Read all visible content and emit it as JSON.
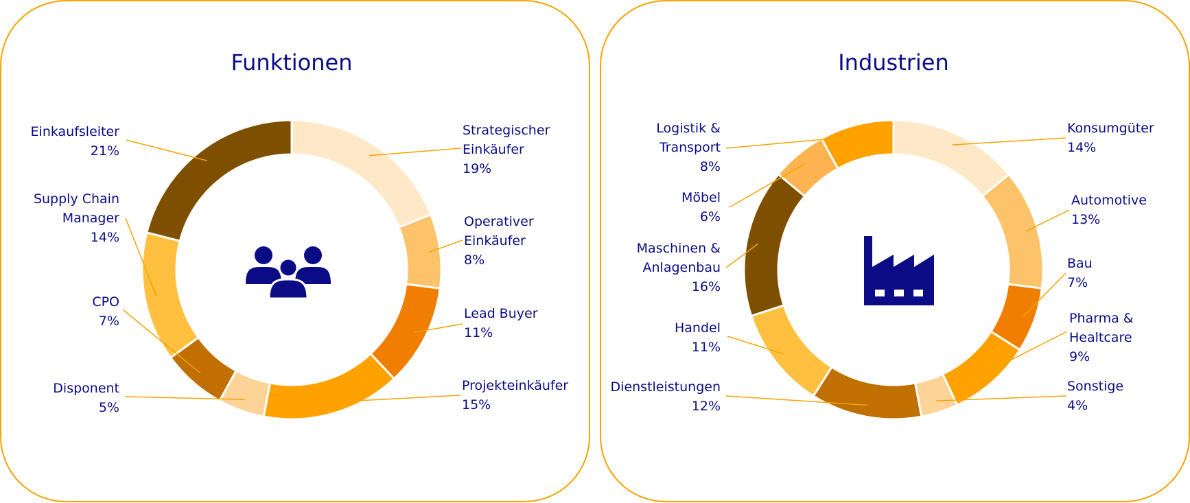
{
  "chart_data": [
    {
      "type": "pie",
      "title": "Funktionen",
      "icon": "people-group-icon",
      "icon_color": "#0b0b85",
      "slices": [
        {
          "name": "Strategischer Einkäufer",
          "lines": [
            "Strategischer",
            "Einkäufer"
          ],
          "value": 19,
          "label": "19%",
          "color": "#fde8c8"
        },
        {
          "name": "Operativer Einkäufer",
          "lines": [
            "Operativer",
            "Einkäufer"
          ],
          "value": 8,
          "label": "8%",
          "color": "#fdc36b"
        },
        {
          "name": "Lead Buyer",
          "lines": [
            "Lead Buyer"
          ],
          "value": 11,
          "label": "11%",
          "color": "#f07e00"
        },
        {
          "name": "Projekteinkäufer",
          "lines": [
            "Projekteinkäufer"
          ],
          "value": 15,
          "label": "15%",
          "color": "#ffa200"
        },
        {
          "name": "Disponent",
          "lines": [
            "Disponent"
          ],
          "value": 5,
          "label": "5%",
          "color": "#fdd398"
        },
        {
          "name": "CPO",
          "lines": [
            "CPO"
          ],
          "value": 7,
          "label": "7%",
          "color": "#bf7000"
        },
        {
          "name": "Supply Chain Manager",
          "lines": [
            "Supply Chain",
            "Manager"
          ],
          "value": 14,
          "label": "14%",
          "color": "#ffc03f"
        },
        {
          "name": "Einkaufsleiter",
          "lines": [
            "Einkaufsleiter"
          ],
          "value": 21,
          "label": "21%",
          "color": "#7f4f00"
        }
      ]
    },
    {
      "type": "pie",
      "title": "Industrien",
      "icon": "factory-icon",
      "icon_color": "#0b0b85",
      "slices": [
        {
          "name": "Konsumgüter",
          "lines": [
            "Konsumgüter"
          ],
          "value": 14,
          "label": "14%",
          "color": "#fde8c8"
        },
        {
          "name": "Automotive",
          "lines": [
            "Automotive"
          ],
          "value": 13,
          "label": "13%",
          "color": "#fdc36b"
        },
        {
          "name": "Bau",
          "lines": [
            "Bau"
          ],
          "value": 7,
          "label": "7%",
          "color": "#f07e00"
        },
        {
          "name": "Pharma & Healtcare",
          "lines": [
            "Pharma &",
            "Healtcare"
          ],
          "value": 9,
          "label": "9%",
          "color": "#ffa200"
        },
        {
          "name": "Sonstige",
          "lines": [
            "Sonstige"
          ],
          "value": 4,
          "label": "4%",
          "color": "#fdd398"
        },
        {
          "name": "Dienstleistungen",
          "lines": [
            "Dienstleistungen"
          ],
          "value": 12,
          "label": "12%",
          "color": "#bf7000"
        },
        {
          "name": "Handel",
          "lines": [
            "Handel"
          ],
          "value": 11,
          "label": "11%",
          "color": "#ffc03f"
        },
        {
          "name": "Maschinen & Anlagenbau",
          "lines": [
            "Maschinen &",
            "Anlagenbau"
          ],
          "value": 16,
          "label": "16%",
          "color": "#7f4f00"
        },
        {
          "name": "Möbel",
          "lines": [
            "Möbel"
          ],
          "value": 6,
          "label": "6%",
          "color": "#fdb350"
        },
        {
          "name": "Logistik & Transport",
          "lines": [
            "Logistik &",
            "Transport"
          ],
          "value": 8,
          "label": "8%",
          "color": "#ffa200"
        }
      ]
    }
  ]
}
